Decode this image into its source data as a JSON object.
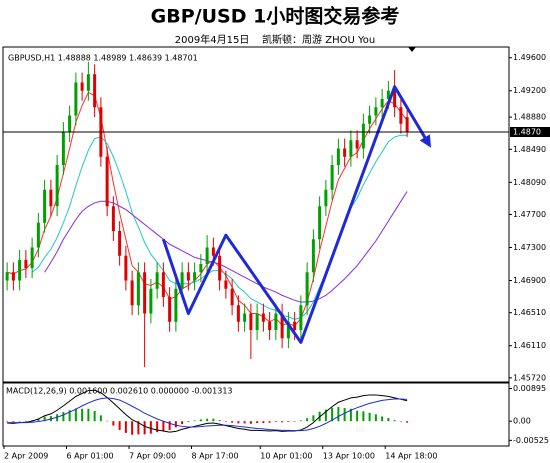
{
  "chart_data": [
    {
      "type": "candlestick",
      "title": "GBP/USD 1小时图交易参考",
      "subtitle": "2009年4月15日    凯斯顿：周游 ZHOU You",
      "header": "GBPUSD,H1 1.48888 1.48989 1.48639 1.48701",
      "categories": [
        "2 Apr 2009",
        null,
        null,
        null,
        null,
        null,
        null,
        null,
        null,
        null,
        "6 Apr 01:00",
        null,
        null,
        null,
        null,
        null,
        null,
        null,
        null,
        null,
        "7 Apr 09:00",
        null,
        null,
        null,
        null,
        null,
        null,
        null,
        null,
        null,
        "8 Apr 17:00",
        null,
        null,
        null,
        null,
        null,
        null,
        null,
        null,
        null,
        null,
        "10 Apr 01:00",
        null,
        null,
        null,
        null,
        null,
        null,
        null,
        null,
        null,
        "13 Apr 10:00",
        null,
        null,
        null,
        null,
        null,
        null,
        null,
        null,
        null,
        "14 Apr 18:00",
        null,
        null,
        null
      ],
      "open": [
        1.469,
        1.47,
        1.469,
        1.4715,
        1.4705,
        1.473,
        1.476,
        1.48,
        1.478,
        1.483,
        1.487,
        1.489,
        1.493,
        1.492,
        1.494,
        1.49,
        1.484,
        1.478,
        1.475,
        1.472,
        1.469,
        1.466,
        1.47,
        1.465,
        1.468,
        1.47,
        1.467,
        1.464,
        1.468,
        1.47,
        1.469,
        1.47,
        1.471,
        1.473,
        1.472,
        1.469,
        1.468,
        1.466,
        1.464,
        1.465,
        1.463,
        1.465,
        1.464,
        1.463,
        1.465,
        1.462,
        1.464,
        1.463,
        1.466,
        1.47,
        1.474,
        1.478,
        1.48,
        1.483,
        1.485,
        1.484,
        1.486,
        1.485,
        1.488,
        1.489,
        1.49,
        1.491,
        1.492,
        1.49,
        1.4888
      ],
      "high": [
        1.4712,
        1.4712,
        1.4727,
        1.4727,
        1.4742,
        1.4772,
        1.4812,
        1.4812,
        1.4842,
        1.4882,
        1.4902,
        1.4942,
        1.4942,
        1.4955,
        1.4952,
        1.4912,
        1.4852,
        1.4792,
        1.4762,
        1.4732,
        1.4702,
        1.4712,
        1.4712,
        1.4692,
        1.4712,
        1.4712,
        1.4682,
        1.4692,
        1.4712,
        1.4712,
        1.4712,
        1.4722,
        1.4745,
        1.4742,
        1.4732,
        1.4702,
        1.4692,
        1.4672,
        1.4662,
        1.4662,
        1.4662,
        1.4662,
        1.4652,
        1.4662,
        1.4662,
        1.4652,
        1.4652,
        1.4672,
        1.4712,
        1.4752,
        1.4792,
        1.4812,
        1.4842,
        1.4862,
        1.4862,
        1.4872,
        1.4872,
        1.4892,
        1.4902,
        1.4912,
        1.4922,
        1.4932,
        1.4945,
        1.4912,
        1.4899
      ],
      "low": [
        1.4678,
        1.4678,
        1.4678,
        1.4693,
        1.4693,
        1.4718,
        1.4748,
        1.4768,
        1.4768,
        1.4818,
        1.4858,
        1.4878,
        1.4908,
        1.4908,
        1.4888,
        1.4828,
        1.4768,
        1.4738,
        1.4708,
        1.4678,
        1.4648,
        1.4648,
        1.4585,
        1.4638,
        1.4668,
        1.4658,
        1.4628,
        1.4628,
        1.4668,
        1.4678,
        1.4678,
        1.4688,
        1.4698,
        1.4708,
        1.4678,
        1.4668,
        1.4648,
        1.4628,
        1.4628,
        1.4595,
        1.4618,
        1.4628,
        1.4618,
        1.4618,
        1.4608,
        1.4608,
        1.4618,
        1.4618,
        1.4648,
        1.4688,
        1.4728,
        1.4768,
        1.4788,
        1.4818,
        1.4828,
        1.4828,
        1.4838,
        1.4838,
        1.4868,
        1.4878,
        1.4888,
        1.4898,
        1.4888,
        1.4868,
        1.4864
      ],
      "close": [
        1.47,
        1.469,
        1.4715,
        1.4705,
        1.473,
        1.476,
        1.48,
        1.478,
        1.483,
        1.487,
        1.489,
        1.493,
        1.492,
        1.494,
        1.49,
        1.484,
        1.478,
        1.475,
        1.472,
        1.469,
        1.466,
        1.47,
        1.465,
        1.468,
        1.47,
        1.467,
        1.464,
        1.468,
        1.47,
        1.469,
        1.47,
        1.471,
        1.473,
        1.472,
        1.469,
        1.468,
        1.466,
        1.464,
        1.465,
        1.463,
        1.465,
        1.464,
        1.463,
        1.465,
        1.462,
        1.464,
        1.463,
        1.466,
        1.47,
        1.474,
        1.478,
        1.48,
        1.483,
        1.485,
        1.484,
        1.486,
        1.485,
        1.488,
        1.489,
        1.49,
        1.491,
        1.492,
        1.49,
        1.488,
        1.487
      ],
      "up_color": "#00a000",
      "down_color": "#e00000",
      "lines": [
        {
          "color": "#ff3030",
          "values": [
            1.47,
            1.4698,
            1.4702,
            1.4704,
            1.4712,
            1.4728,
            1.4752,
            1.4768,
            1.479,
            1.482,
            1.485,
            1.4882,
            1.4902,
            1.4918,
            1.4914,
            1.4888,
            1.4848,
            1.4808,
            1.4772,
            1.474,
            1.4708,
            1.47,
            1.4686,
            1.4684,
            1.4688,
            1.4682,
            1.4668,
            1.467,
            1.468,
            1.4684,
            1.469,
            1.4698,
            1.471,
            1.4714,
            1.4706,
            1.4696,
            1.4682,
            1.4666,
            1.466,
            1.465,
            1.465,
            1.4646,
            1.464,
            1.4644,
            1.4636,
            1.4638,
            1.4635,
            1.4644,
            1.4664,
            1.4692,
            1.4726,
            1.4756,
            1.4786,
            1.4812,
            1.4826,
            1.484,
            1.4845,
            1.486,
            1.4874,
            1.4886,
            1.4898,
            1.4908,
            1.4904,
            1.4894,
            1.4884
          ]
        },
        {
          "color": "#20c8c8",
          "values": [
            null,
            null,
            null,
            null,
            1.47,
            1.4706,
            1.4718,
            1.4728,
            1.4742,
            1.476,
            1.478,
            1.4805,
            1.4828,
            1.4848,
            1.4862,
            1.4864,
            1.4856,
            1.484,
            1.482,
            1.4798,
            1.4772,
            1.4755,
            1.4736,
            1.4722,
            1.4712,
            1.4702,
            1.469,
            1.4686,
            1.4686,
            1.4686,
            1.4688,
            1.4692,
            1.4698,
            1.4702,
            1.4702,
            1.4698,
            1.4692,
            1.4682,
            1.4676,
            1.4668,
            1.4664,
            1.466,
            1.4656,
            1.4654,
            1.4648,
            1.4646,
            1.4643,
            1.4645,
            1.4652,
            1.4664,
            1.4682,
            1.47,
            1.472,
            1.4742,
            1.476,
            1.4778,
            1.479,
            1.4806,
            1.482,
            1.4834,
            1.4846,
            1.4858,
            1.4864,
            1.4866,
            1.4866
          ]
        },
        {
          "color": "#8a2be2",
          "values": [
            null,
            null,
            null,
            null,
            null,
            null,
            1.47,
            1.4712,
            1.4725,
            1.474,
            1.4752,
            1.4764,
            1.4774,
            1.478,
            1.4784,
            1.4786,
            1.4786,
            1.4784,
            1.478,
            1.4776,
            1.477,
            1.4764,
            1.4758,
            1.4752,
            1.4746,
            1.474,
            1.4734,
            1.473,
            1.4726,
            1.4722,
            1.4718,
            1.4716,
            1.4714,
            1.4712,
            1.471,
            1.4706,
            1.4702,
            1.4698,
            1.4694,
            1.469,
            1.4686,
            1.4682,
            1.4679,
            1.4676,
            1.4672,
            1.4669,
            1.4666,
            1.4664,
            1.4664,
            1.4665,
            1.4668,
            1.4672,
            1.4678,
            1.4685,
            1.4692,
            1.47,
            1.4708,
            1.4718,
            1.4728,
            1.4738,
            1.475,
            1.4762,
            1.4774,
            1.4786,
            1.4798
          ]
        }
      ],
      "annotation": {
        "color": "#1f2ad6",
        "x": [
          25,
          29,
          35,
          47,
          62,
          67.5
        ],
        "y": [
          1.474,
          1.465,
          1.4745,
          1.4615,
          1.4925,
          1.4855
        ]
      },
      "current_price": {
        "value": 1.487,
        "label": "1.4870"
      },
      "ylim": [
        1.4567,
        1.4973
      ],
      "yticks": [
        {
          "value": 1.496,
          "label": "1.49600"
        },
        {
          "value": 1.492,
          "label": "1.49200"
        },
        {
          "value": 1.4888,
          "label": "1.48880"
        },
        {
          "value": 1.4849,
          "label": "1.48490"
        },
        {
          "value": 1.4809,
          "label": "1.48090"
        },
        {
          "value": 1.477,
          "label": "1.47700"
        },
        {
          "value": 1.473,
          "label": "1.47300"
        },
        {
          "value": 1.469,
          "label": "1.46900"
        },
        {
          "value": 1.4651,
          "label": "1.46510"
        },
        {
          "value": 1.4611,
          "label": "1.46110"
        },
        {
          "value": 1.4572,
          "label": "1.45720"
        }
      ]
    },
    {
      "type": "macd",
      "header": "MACD(12,26,9) 0.001600 0.002610 0.000000 -0.001313",
      "histogram": {
        "up_color": "#00a000",
        "down_color": "#e00000",
        "values": [
          -0.0001,
          -0.0002,
          0.0,
          0.0001,
          0.0003,
          0.0007,
          0.0013,
          0.0014,
          0.0019,
          0.0025,
          0.003,
          0.0035,
          0.0034,
          0.0034,
          0.0028,
          0.0016,
          0.0001,
          -0.0012,
          -0.0024,
          -0.0032,
          -0.0037,
          -0.0036,
          -0.0036,
          -0.0034,
          -0.003,
          -0.0027,
          -0.0024,
          -0.0017,
          -0.0008,
          -0.0002,
          0.0002,
          0.0005,
          0.0007,
          0.0007,
          0.0003,
          -0.0001,
          -0.0004,
          -0.0006,
          -0.0006,
          -0.0007,
          -0.0005,
          -0.0005,
          -0.0004,
          -0.0002,
          -0.0003,
          -0.0002,
          -0.0001,
          0.0002,
          0.0008,
          0.0016,
          0.0026,
          0.0032,
          0.0037,
          0.0039,
          0.0036,
          0.0034,
          0.0029,
          0.0027,
          0.0023,
          0.0019,
          0.0013,
          0.0009,
          0.0003,
          -0.0001,
          -0.0004
        ]
      },
      "series": [
        {
          "color": "#000000",
          "values": [
            -0.0005,
            -0.0006,
            -0.0004,
            -0.0003,
            0.0,
            0.0006,
            0.0015,
            0.002,
            0.003,
            0.0042,
            0.0055,
            0.0068,
            0.0076,
            0.0084,
            0.0085,
            0.0078,
            0.0065,
            0.005,
            0.0034,
            0.0018,
            0.0004,
            -0.0004,
            -0.0014,
            -0.002,
            -0.0024,
            -0.0027,
            -0.003,
            -0.0028,
            -0.0022,
            -0.0018,
            -0.0014,
            -0.001,
            -0.0006,
            -0.0005,
            -0.0008,
            -0.0012,
            -0.0016,
            -0.002,
            -0.0022,
            -0.0025,
            -0.0025,
            -0.0026,
            -0.0027,
            -0.0026,
            -0.0028,
            -0.0027,
            -0.0027,
            -0.0024,
            -0.0016,
            -0.0004,
            0.0012,
            0.0026,
            0.004,
            0.0052,
            0.0058,
            0.0064,
            0.0066,
            0.007,
            0.0072,
            0.0072,
            0.007,
            0.0068,
            0.0064,
            0.006,
            0.0056
          ]
        },
        {
          "color": "#1f2ad6",
          "values": [
            -0.0004,
            -0.0004,
            -0.0004,
            -0.0004,
            -0.0003,
            -0.0001,
            0.0002,
            0.0006,
            0.0011,
            0.0017,
            0.0025,
            0.0033,
            0.0042,
            0.005,
            0.0057,
            0.0062,
            0.0064,
            0.0062,
            0.0058,
            0.005,
            0.0041,
            0.0032,
            0.0022,
            0.0014,
            0.0006,
            0.0,
            -0.0006,
            -0.0011,
            -0.0014,
            -0.0016,
            -0.0016,
            -0.0015,
            -0.0013,
            -0.0012,
            -0.0011,
            -0.0011,
            -0.0012,
            -0.0014,
            -0.0016,
            -0.0018,
            -0.002,
            -0.0021,
            -0.0023,
            -0.0024,
            -0.0025,
            -0.0025,
            -0.0026,
            -0.0026,
            -0.0024,
            -0.002,
            -0.0014,
            -0.0006,
            0.0003,
            0.0013,
            0.0022,
            0.003,
            0.0037,
            0.0043,
            0.0049,
            0.0053,
            0.0057,
            0.0059,
            0.0061,
            0.0061,
            0.006
          ]
        }
      ],
      "ylim": [
        -0.0068,
        0.0102
      ],
      "yticks": [
        {
          "value": 0.00895,
          "label": "0.00895"
        },
        {
          "value": 0,
          "label": "0.00"
        },
        {
          "value": -0.00525,
          "label": "-0.00525"
        }
      ]
    }
  ]
}
